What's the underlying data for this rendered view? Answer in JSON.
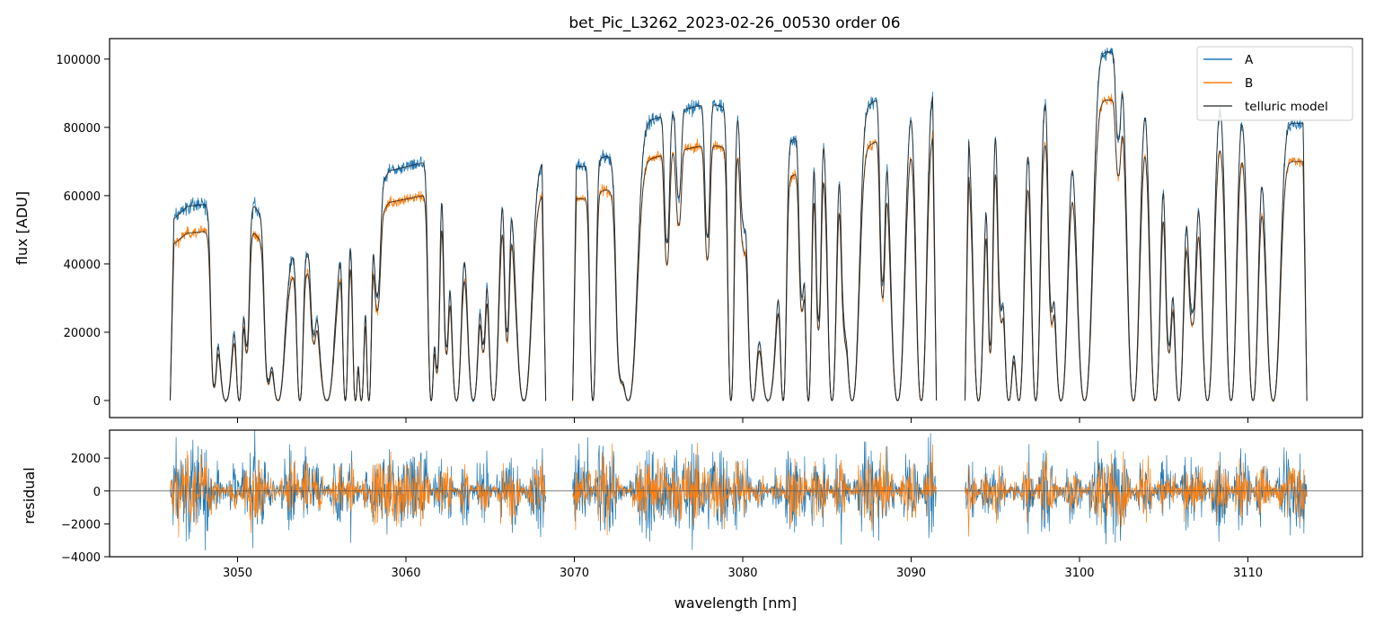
{
  "chart_data": [
    {
      "type": "line",
      "panel": "spectrum",
      "title": "bet_Pic_L3262_2023-02-26_00530  order 06",
      "xlabel": "",
      "ylabel": "flux [ADU]",
      "xlim": [
        3042.4,
        3116.8
      ],
      "ylim": [
        -5000,
        106000
      ],
      "yticks": [
        0,
        20000,
        40000,
        60000,
        80000,
        100000
      ],
      "ytick_labels": [
        "0",
        "20000",
        "40000",
        "60000",
        "80000",
        "100000"
      ],
      "xticks": [
        3050,
        3060,
        3070,
        3080,
        3090,
        3100,
        3110
      ],
      "xtick_labels": [],
      "grid": false,
      "legend_position": "top-right",
      "series": [
        {
          "name": "A",
          "color": "#1f77b4",
          "scale": 1.16
        },
        {
          "name": "B",
          "color": "#ff7f0e",
          "scale": 1.0
        },
        {
          "name": "telluric model",
          "color": "#4a4a4a",
          "scale": 1.0
        }
      ],
      "continuum_B": {
        "x": [
          3046,
          3047,
          3048,
          3050,
          3051,
          3053,
          3055,
          3057,
          3059,
          3061,
          3063,
          3065,
          3067,
          3068.3,
          3070.5,
          3072,
          3074,
          3076,
          3078,
          3080,
          3082,
          3084,
          3086,
          3088,
          3090,
          3091.5,
          3093.2,
          3095,
          3097,
          3099,
          3101,
          3102.5,
          3104,
          3106,
          3108,
          3110,
          3112,
          3113.5
        ],
        "y": [
          45000,
          49000,
          49500,
          45000,
          49000,
          37000,
          38000,
          43000,
          58000,
          60000,
          56000,
          58000,
          60000,
          60000,
          59000,
          62000,
          70000,
          73000,
          75000,
          73000,
          64000,
          68000,
          71000,
          76000,
          78000,
          78000,
          70000,
          71000,
          75000,
          80000,
          88000,
          88000,
          78000,
          72000,
          78000,
          72000,
          70000,
          70000
        ]
      },
      "data_gaps": [
        [
          3068.3,
          3069.9
        ],
        [
          3091.5,
          3093.2
        ]
      ],
      "absorption_lines": [
        {
          "x": 3048.6,
          "depth": 0.9,
          "width": 0.18
        },
        {
          "x": 3049.3,
          "depth": 1.0,
          "width": 0.45
        },
        {
          "x": 3050.1,
          "depth": 1.0,
          "width": 0.2
        },
        {
          "x": 3050.55,
          "depth": 0.7,
          "width": 0.15
        },
        {
          "x": 3051.8,
          "depth": 0.85,
          "width": 0.2
        },
        {
          "x": 3052.4,
          "depth": 1.0,
          "width": 0.4
        },
        {
          "x": 3053.7,
          "depth": 1.0,
          "width": 0.18
        },
        {
          "x": 3054.5,
          "depth": 0.5,
          "width": 0.15
        },
        {
          "x": 3055.3,
          "depth": 1.0,
          "width": 0.45
        },
        {
          "x": 3056.4,
          "depth": 1.0,
          "width": 0.15
        },
        {
          "x": 3057.0,
          "depth": 1.0,
          "width": 0.15
        },
        {
          "x": 3057.35,
          "depth": 1.0,
          "width": 0.18
        },
        {
          "x": 3057.8,
          "depth": 1.0,
          "width": 0.15
        },
        {
          "x": 3058.3,
          "depth": 0.5,
          "width": 0.18
        },
        {
          "x": 3061.5,
          "depth": 1.0,
          "width": 0.18
        },
        {
          "x": 3061.85,
          "depth": 0.85,
          "width": 0.15
        },
        {
          "x": 3062.4,
          "depth": 0.75,
          "width": 0.15
        },
        {
          "x": 3063.0,
          "depth": 1.0,
          "width": 0.3
        },
        {
          "x": 3064.0,
          "depth": 1.0,
          "width": 0.35
        },
        {
          "x": 3064.6,
          "depth": 0.7,
          "width": 0.15
        },
        {
          "x": 3065.2,
          "depth": 1.0,
          "width": 0.3
        },
        {
          "x": 3066.0,
          "depth": 0.7,
          "width": 0.15
        },
        {
          "x": 3067.0,
          "depth": 1.0,
          "width": 0.45
        },
        {
          "x": 3071.1,
          "depth": 1.0,
          "width": 0.18
        },
        {
          "x": 3072.7,
          "depth": 0.75,
          "width": 0.2
        },
        {
          "x": 3073.2,
          "depth": 1.0,
          "width": 0.5
        },
        {
          "x": 3075.5,
          "depth": 0.45,
          "width": 0.15
        },
        {
          "x": 3076.2,
          "depth": 0.3,
          "width": 0.15
        },
        {
          "x": 3077.9,
          "depth": 0.45,
          "width": 0.15
        },
        {
          "x": 3079.3,
          "depth": 1.0,
          "width": 0.18
        },
        {
          "x": 3080.0,
          "depth": 0.35,
          "width": 0.15
        },
        {
          "x": 3080.6,
          "depth": 1.0,
          "width": 0.3
        },
        {
          "x": 3081.5,
          "depth": 1.0,
          "width": 0.55
        },
        {
          "x": 3082.4,
          "depth": 1.0,
          "width": 0.18
        },
        {
          "x": 3083.5,
          "depth": 0.6,
          "width": 0.15
        },
        {
          "x": 3083.9,
          "depth": 1.0,
          "width": 0.18
        },
        {
          "x": 3084.5,
          "depth": 0.7,
          "width": 0.15
        },
        {
          "x": 3085.3,
          "depth": 1.0,
          "width": 0.25
        },
        {
          "x": 3086.0,
          "depth": 0.5,
          "width": 0.15
        },
        {
          "x": 3086.5,
          "depth": 1.0,
          "width": 0.4
        },
        {
          "x": 3088.3,
          "depth": 0.6,
          "width": 0.15
        },
        {
          "x": 3089.2,
          "depth": 1.0,
          "width": 0.4
        },
        {
          "x": 3090.6,
          "depth": 1.0,
          "width": 0.3
        },
        {
          "x": 3094.0,
          "depth": 1.0,
          "width": 0.3
        },
        {
          "x": 3094.7,
          "depth": 0.8,
          "width": 0.15
        },
        {
          "x": 3095.3,
          "depth": 0.6,
          "width": 0.15
        },
        {
          "x": 3095.8,
          "depth": 1.0,
          "width": 0.3
        },
        {
          "x": 3096.4,
          "depth": 1.0,
          "width": 0.3
        },
        {
          "x": 3097.4,
          "depth": 1.0,
          "width": 0.25
        },
        {
          "x": 3098.3,
          "depth": 0.6,
          "width": 0.15
        },
        {
          "x": 3098.9,
          "depth": 1.0,
          "width": 0.4
        },
        {
          "x": 3100.3,
          "depth": 1.0,
          "width": 0.45
        },
        {
          "x": 3102.3,
          "depth": 0.25,
          "width": 0.15
        },
        {
          "x": 3103.2,
          "depth": 1.0,
          "width": 0.35
        },
        {
          "x": 3104.5,
          "depth": 1.0,
          "width": 0.3
        },
        {
          "x": 3105.3,
          "depth": 0.8,
          "width": 0.2
        },
        {
          "x": 3105.9,
          "depth": 1.0,
          "width": 0.3
        },
        {
          "x": 3106.7,
          "depth": 0.7,
          "width": 0.25
        },
        {
          "x": 3107.6,
          "depth": 1.0,
          "width": 0.35
        },
        {
          "x": 3109.0,
          "depth": 1.0,
          "width": 0.3
        },
        {
          "x": 3110.3,
          "depth": 1.0,
          "width": 0.3
        },
        {
          "x": 3111.5,
          "depth": 1.0,
          "width": 0.4
        }
      ]
    },
    {
      "type": "line",
      "panel": "residual",
      "xlabel": "wavelength [nm]",
      "ylabel": "residual",
      "xlim": [
        3042.4,
        3116.8
      ],
      "ylim": [
        -4000,
        3700
      ],
      "yticks": [
        -4000,
        -2000,
        0,
        2000
      ],
      "ytick_labels": [
        "−4000",
        "−2000",
        "0",
        "2000"
      ],
      "xticks": [
        3050,
        3060,
        3070,
        3080,
        3090,
        3100,
        3110
      ],
      "xtick_labels": [
        "3050",
        "3060",
        "3070",
        "3080",
        "3090",
        "3100",
        "3110"
      ],
      "zero_line": 0,
      "grid": false,
      "series": [
        {
          "name": "A",
          "color": "#1f77b4",
          "noise_amplitude": 1400
        },
        {
          "name": "B",
          "color": "#ff7f0e",
          "noise_amplitude": 1100
        }
      ]
    }
  ]
}
